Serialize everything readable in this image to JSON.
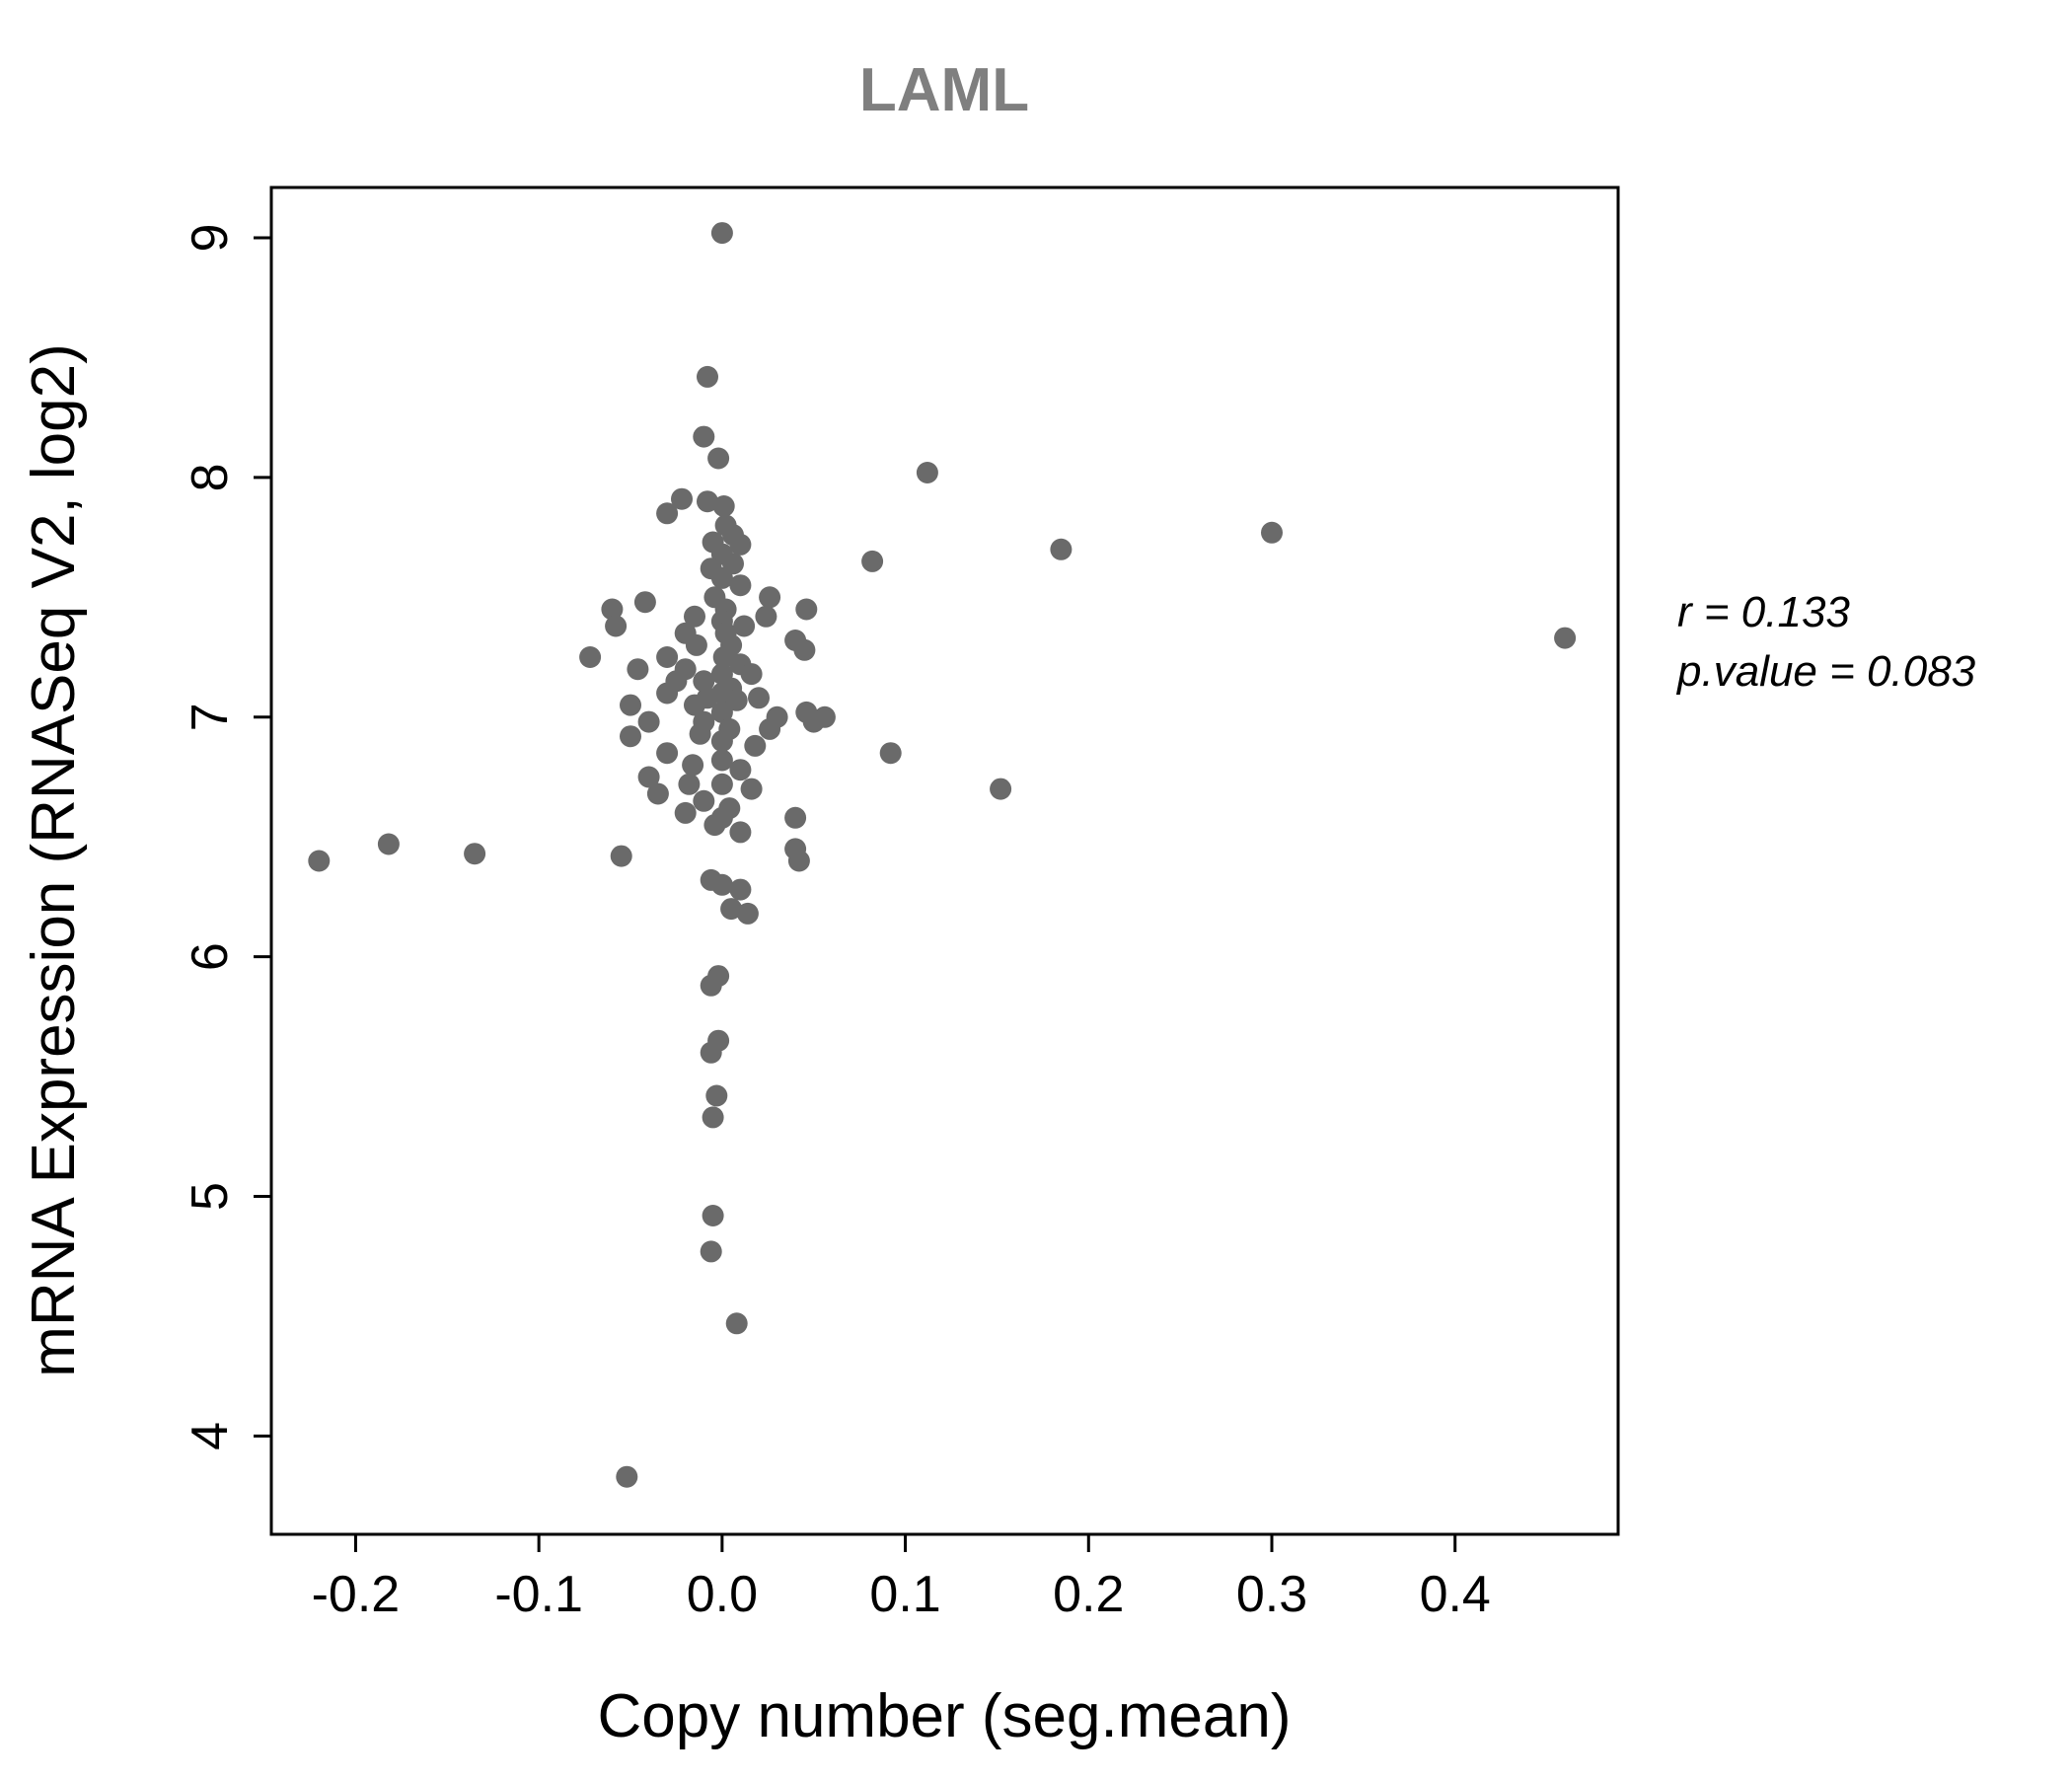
{
  "title": "LAML",
  "annotation": {
    "r_line": "r = 0.133",
    "p_line": "p.value = 0.083"
  },
  "chart_data": {
    "type": "scatter",
    "title": "LAML",
    "xlabel": "Copy number (seg.mean)",
    "ylabel": "mRNA Expression (RNASeq V2, log2)",
    "xlim": [
      -0.246,
      0.489
    ],
    "ylim": [
      3.59,
      9.21
    ],
    "xtick_values": [
      -0.2,
      -0.1,
      0.0,
      0.1,
      0.2,
      0.3,
      0.4
    ],
    "xtick_labels": [
      "-0.2",
      "-0.1",
      "0.0",
      "0.1",
      "0.2",
      "0.3",
      "0.4"
    ],
    "ytick_values": [
      4,
      5,
      6,
      7,
      8,
      9
    ],
    "ytick_labels": [
      "4",
      "5",
      "6",
      "7",
      "8",
      "9"
    ],
    "grid": false,
    "legend": "none",
    "point_color": "#6a6a6a",
    "point_radius": 11,
    "stats": {
      "r": 0.133,
      "p_value": 0.083
    },
    "points": [
      [
        0.0,
        9.02
      ],
      [
        -0.008,
        8.42
      ],
      [
        -0.01,
        8.17
      ],
      [
        -0.002,
        8.08
      ],
      [
        0.112,
        8.02
      ],
      [
        -0.022,
        7.91
      ],
      [
        -0.008,
        7.9
      ],
      [
        0.001,
        7.88
      ],
      [
        -0.03,
        7.85
      ],
      [
        0.002,
        7.8
      ],
      [
        0.3,
        7.77
      ],
      [
        0.006,
        7.76
      ],
      [
        -0.005,
        7.73
      ],
      [
        0.01,
        7.72
      ],
      [
        0.185,
        7.7
      ],
      [
        0.0,
        7.68
      ],
      [
        0.082,
        7.65
      ],
      [
        0.006,
        7.64
      ],
      [
        -0.006,
        7.62
      ],
      [
        0.0,
        7.58
      ],
      [
        0.01,
        7.55
      ],
      [
        -0.004,
        7.5
      ],
      [
        0.026,
        7.5
      ],
      [
        -0.042,
        7.48
      ],
      [
        -0.06,
        7.45
      ],
      [
        0.046,
        7.45
      ],
      [
        0.002,
        7.45
      ],
      [
        -0.015,
        7.42
      ],
      [
        0.024,
        7.42
      ],
      [
        0.0,
        7.4
      ],
      [
        -0.058,
        7.38
      ],
      [
        0.012,
        7.38
      ],
      [
        -0.02,
        7.35
      ],
      [
        0.002,
        7.35
      ],
      [
        0.46,
        7.33
      ],
      [
        0.04,
        7.32
      ],
      [
        -0.014,
        7.3
      ],
      [
        0.005,
        7.3
      ],
      [
        0.045,
        7.28
      ],
      [
        -0.072,
        7.25
      ],
      [
        -0.03,
        7.25
      ],
      [
        0.001,
        7.25
      ],
      [
        0.01,
        7.22
      ],
      [
        -0.046,
        7.2
      ],
      [
        -0.02,
        7.2
      ],
      [
        0.0,
        7.18
      ],
      [
        0.016,
        7.18
      ],
      [
        -0.01,
        7.15
      ],
      [
        -0.025,
        7.15
      ],
      [
        0.005,
        7.12
      ],
      [
        -0.03,
        7.1
      ],
      [
        0.0,
        7.1
      ],
      [
        0.02,
        7.08
      ],
      [
        -0.008,
        7.08
      ],
      [
        0.008,
        7.07
      ],
      [
        -0.05,
        7.05
      ],
      [
        -0.015,
        7.05
      ],
      [
        0.0,
        7.02
      ],
      [
        0.046,
        7.02
      ],
      [
        0.056,
        7.0
      ],
      [
        0.03,
        7.0
      ],
      [
        -0.04,
        6.98
      ],
      [
        -0.01,
        6.98
      ],
      [
        0.05,
        6.98
      ],
      [
        0.004,
        6.95
      ],
      [
        0.026,
        6.95
      ],
      [
        -0.012,
        6.93
      ],
      [
        -0.05,
        6.92
      ],
      [
        0.0,
        6.9
      ],
      [
        0.018,
        6.88
      ],
      [
        -0.03,
        6.85
      ],
      [
        0.092,
        6.85
      ],
      [
        0.0,
        6.82
      ],
      [
        -0.016,
        6.8
      ],
      [
        0.01,
        6.78
      ],
      [
        -0.04,
        6.75
      ],
      [
        0.0,
        6.72
      ],
      [
        -0.018,
        6.72
      ],
      [
        0.016,
        6.7
      ],
      [
        0.152,
        6.7
      ],
      [
        -0.035,
        6.68
      ],
      [
        -0.01,
        6.65
      ],
      [
        0.004,
        6.62
      ],
      [
        -0.02,
        6.6
      ],
      [
        0.0,
        6.58
      ],
      [
        0.04,
        6.58
      ],
      [
        -0.004,
        6.55
      ],
      [
        0.01,
        6.52
      ],
      [
        0.04,
        6.45
      ],
      [
        -0.22,
        6.4
      ],
      [
        -0.182,
        6.47
      ],
      [
        -0.135,
        6.43
      ],
      [
        -0.055,
        6.42
      ],
      [
        0.042,
        6.4
      ],
      [
        -0.006,
        6.32
      ],
      [
        0.0,
        6.3
      ],
      [
        0.01,
        6.28
      ],
      [
        0.005,
        6.2
      ],
      [
        0.014,
        6.18
      ],
      [
        -0.002,
        5.92
      ],
      [
        -0.006,
        5.88
      ],
      [
        -0.002,
        5.65
      ],
      [
        -0.006,
        5.6
      ],
      [
        -0.003,
        5.42
      ],
      [
        -0.005,
        5.33
      ],
      [
        -0.005,
        4.92
      ],
      [
        -0.006,
        4.77
      ],
      [
        0.008,
        4.47
      ],
      [
        -0.052,
        3.83
      ]
    ]
  }
}
